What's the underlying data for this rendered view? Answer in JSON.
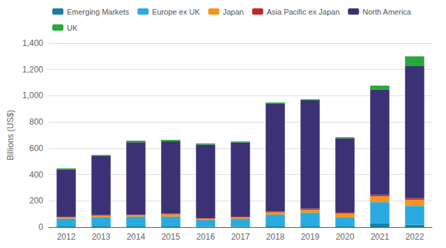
{
  "chart_data": {
    "type": "bar",
    "stacked": true,
    "categories": [
      "2012",
      "2013",
      "2014",
      "2015",
      "2016",
      "2017",
      "2018",
      "2019",
      "2020",
      "2021",
      "2022"
    ],
    "series": [
      {
        "name": "Emerging Markets",
        "color": "#1a7ea0",
        "values": [
          5,
          5,
          5,
          5,
          3,
          3,
          5,
          5,
          5,
          30,
          18
        ]
      },
      {
        "name": "Europe ex UK",
        "color": "#29abe2",
        "values": [
          60,
          70,
          75,
          75,
          50,
          60,
          90,
          105,
          70,
          160,
          145
        ]
      },
      {
        "name": "Japan",
        "color": "#f7941d",
        "values": [
          10,
          12,
          12,
          18,
          12,
          12,
          18,
          22,
          28,
          45,
          45
        ]
      },
      {
        "name": "Asia Pacific ex Japan",
        "color": "#be2a2a",
        "values": [
          4,
          4,
          4,
          4,
          4,
          4,
          8,
          8,
          8,
          12,
          12
        ]
      },
      {
        "name": "North America",
        "color": "#3d3176",
        "values": [
          360,
          450,
          550,
          550,
          560,
          565,
          820,
          825,
          565,
          800,
          1005
        ]
      },
      {
        "name": "UK",
        "color": "#27a83a",
        "values": [
          8,
          8,
          12,
          12,
          8,
          8,
          8,
          8,
          8,
          30,
          75
        ]
      }
    ],
    "ylabel": "Billions (US$)",
    "ylim": [
      0,
      1400
    ],
    "yticks": [
      0,
      200,
      400,
      600,
      800,
      {
        "value": 1000,
        "label": "1,000"
      },
      {
        "value": 1200,
        "label": "1,200"
      },
      {
        "value": 1400,
        "label": "1,400"
      }
    ],
    "grid": true,
    "legend": "upper left"
  }
}
